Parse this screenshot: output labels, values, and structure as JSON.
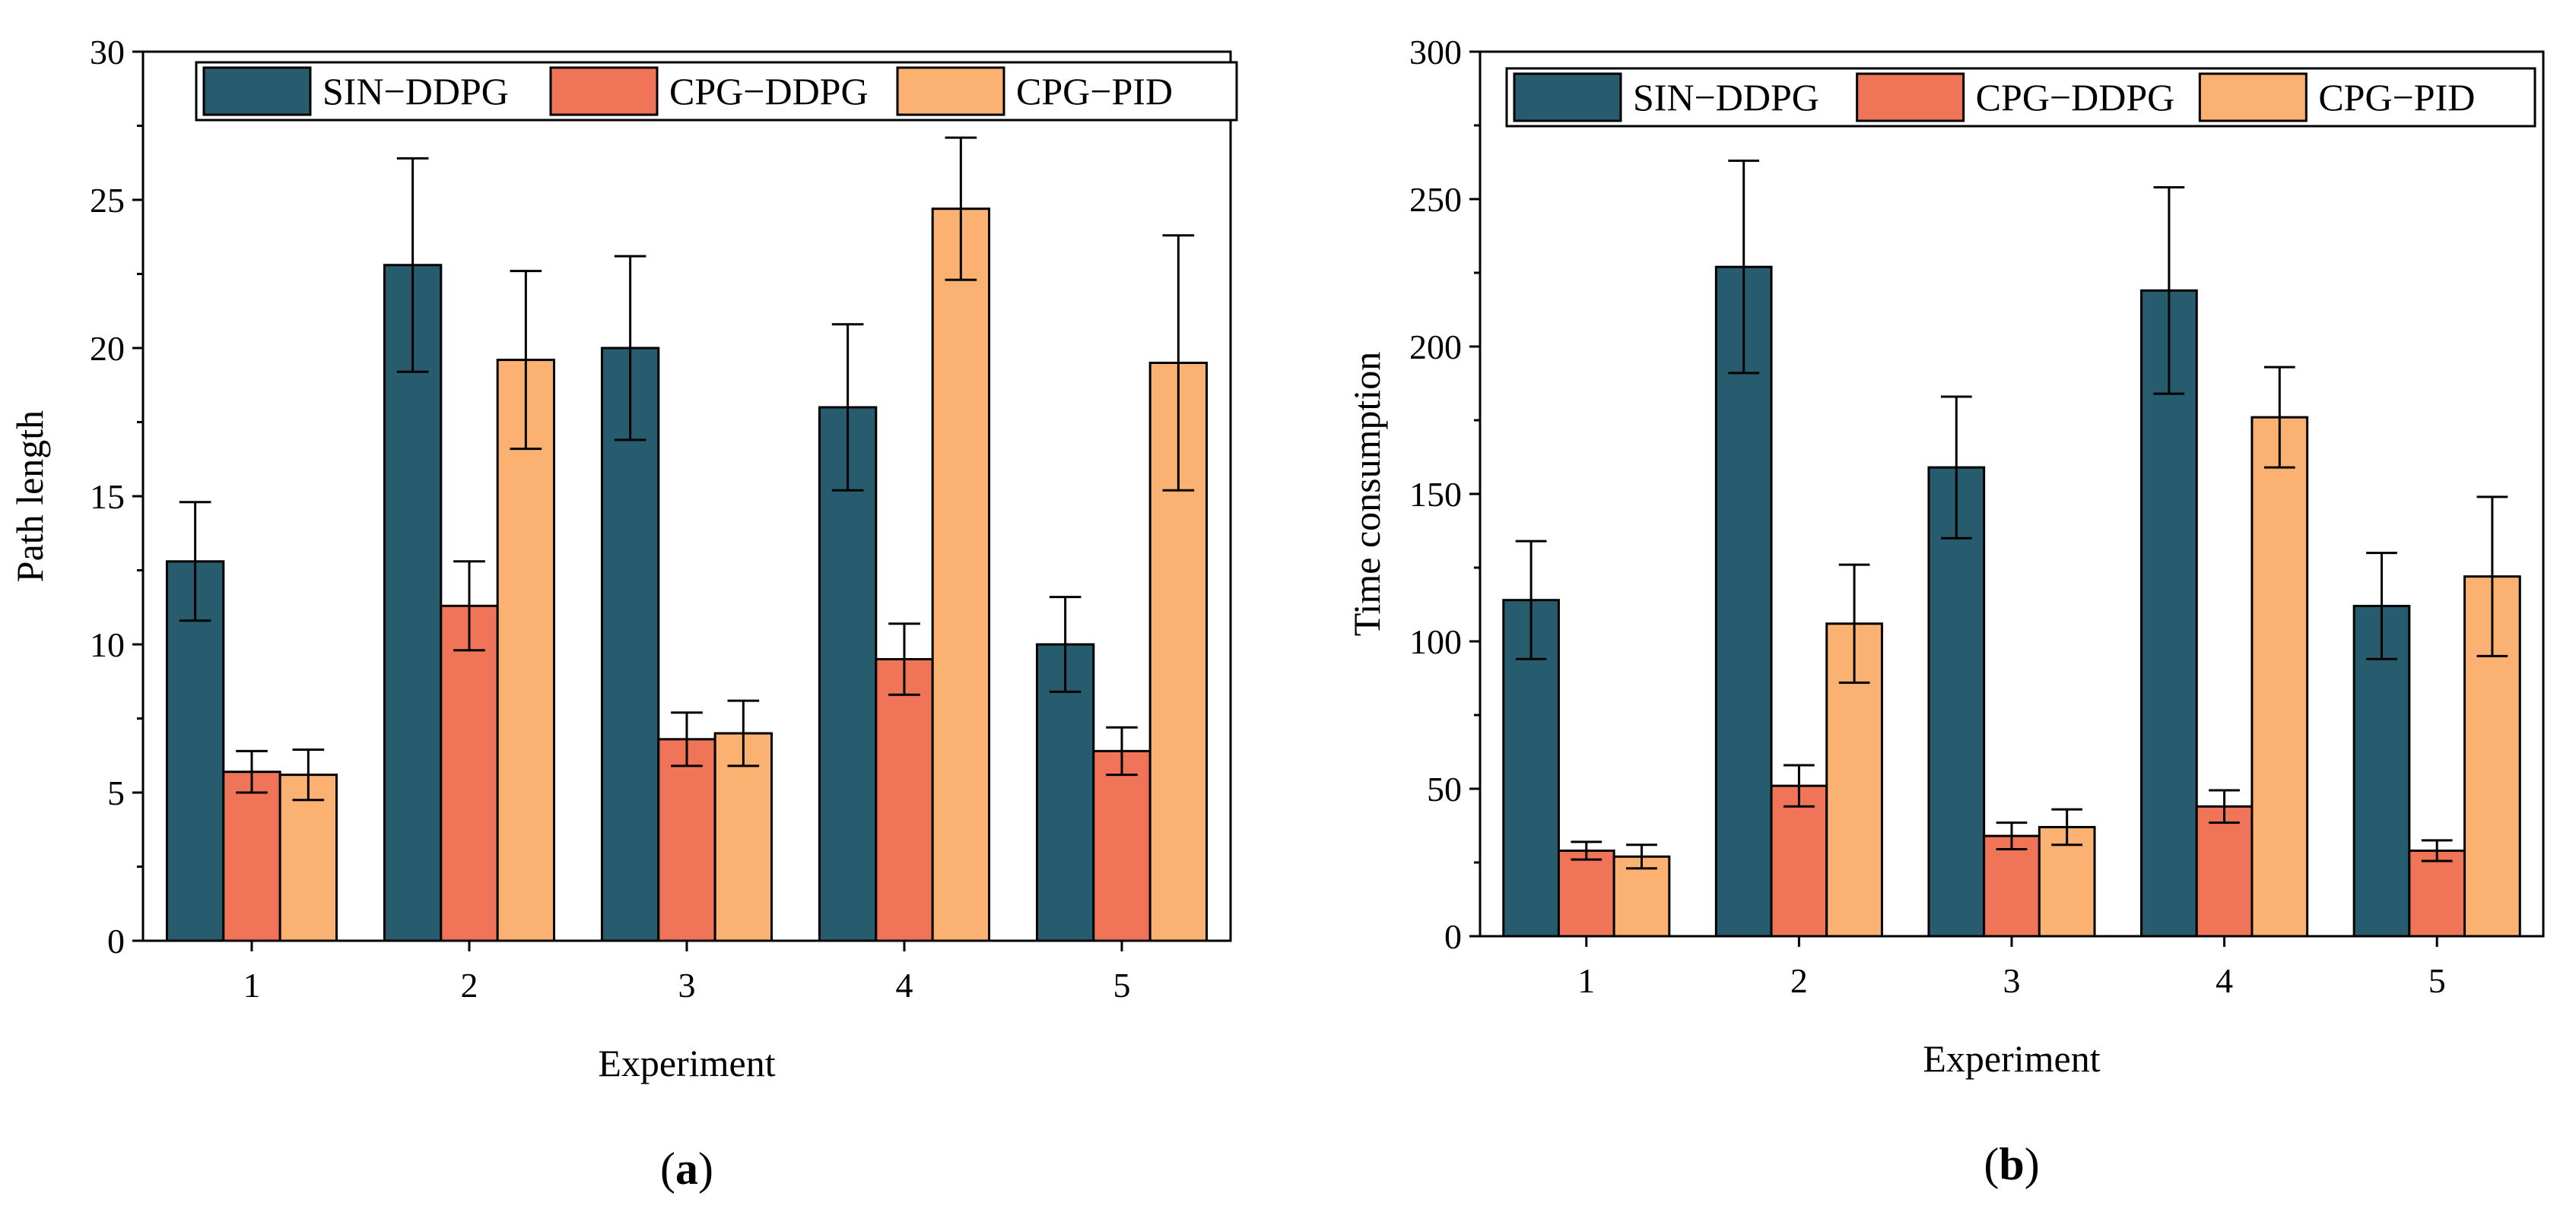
{
  "colors": {
    "SIN-DDPG": "#275C6F",
    "CPG-DDPG": "#F07458",
    "CPG-PID": "#FBB171",
    "axis": "#000000",
    "background": "#ffffff"
  },
  "chart_data": [
    {
      "id": "a",
      "type": "bar",
      "panel_label": "a",
      "title": "",
      "xlabel": "Experiment",
      "ylabel": "Path length",
      "categories": [
        "1",
        "2",
        "3",
        "4",
        "5"
      ],
      "ylim": [
        0,
        30
      ],
      "yticks": [
        0,
        5,
        10,
        15,
        20,
        25,
        30
      ],
      "legend_position": "top",
      "grid": false,
      "series": [
        {
          "name": "SIN−DDPG",
          "key": "SIN-DDPG",
          "values": [
            12.8,
            22.8,
            20.0,
            18.0,
            10.0
          ],
          "errors": [
            2.0,
            3.6,
            3.1,
            2.8,
            1.6
          ]
        },
        {
          "name": "CPG−DDPG",
          "key": "CPG-DDPG",
          "values": [
            5.7,
            11.3,
            6.8,
            9.5,
            6.4
          ],
          "errors": [
            0.7,
            1.5,
            0.9,
            1.2,
            0.8
          ]
        },
        {
          "name": "CPG−PID",
          "key": "CPG-PID",
          "values": [
            5.6,
            19.6,
            7.0,
            24.7,
            19.5
          ],
          "errors": [
            0.85,
            3.0,
            1.1,
            2.4,
            4.3
          ]
        }
      ]
    },
    {
      "id": "b",
      "type": "bar",
      "panel_label": "b",
      "title": "",
      "xlabel": "Experiment",
      "ylabel": "Time consumption",
      "categories": [
        "1",
        "2",
        "3",
        "4",
        "5"
      ],
      "ylim": [
        0,
        300
      ],
      "yticks": [
        0,
        50,
        100,
        150,
        200,
        250,
        300
      ],
      "legend_position": "top",
      "grid": false,
      "series": [
        {
          "name": "SIN−DDPG",
          "key": "SIN-DDPG",
          "values": [
            114,
            227,
            159,
            219,
            112
          ],
          "errors": [
            20,
            36,
            24,
            35,
            18
          ]
        },
        {
          "name": "CPG−DDPG",
          "key": "CPG-DDPG",
          "values": [
            29,
            51,
            34,
            44,
            29
          ],
          "errors": [
            3,
            7,
            4.5,
            5.5,
            3.5
          ]
        },
        {
          "name": "CPG−PID",
          "key": "CPG-PID",
          "values": [
            27,
            106,
            37,
            176,
            122
          ],
          "errors": [
            4,
            20,
            6,
            17,
            27
          ]
        }
      ]
    }
  ]
}
